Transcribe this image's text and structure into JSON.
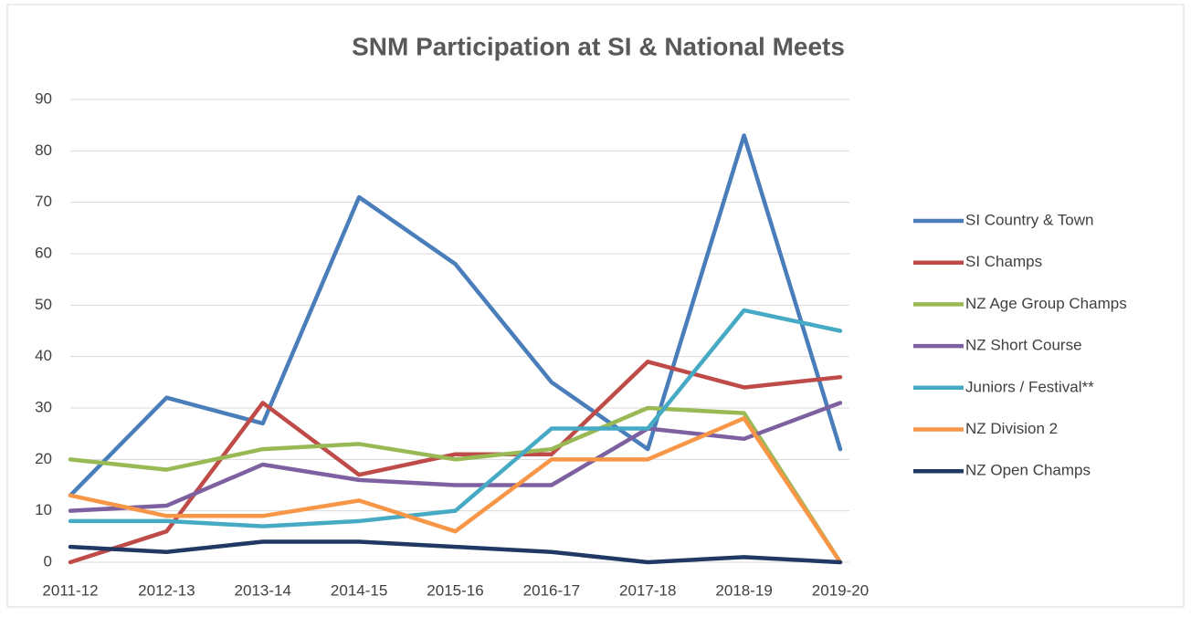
{
  "chart_data": {
    "type": "line",
    "title": "SNM Participation at SI & National Meets",
    "categories": [
      "2011-12",
      "2012-13",
      "2013-14",
      "2014-15",
      "2015-16",
      "2016-17",
      "2017-18",
      "2018-19",
      "2019-20"
    ],
    "series": [
      {
        "name": "SI Country & Town",
        "color": "#4a7ebb",
        "values": [
          13,
          32,
          27,
          71,
          58,
          35,
          22,
          83,
          22
        ]
      },
      {
        "name": "SI Champs",
        "color": "#be4b48",
        "values": [
          0,
          6,
          31,
          17,
          21,
          21,
          39,
          34,
          36
        ]
      },
      {
        "name": "NZ Age Group Champs",
        "color": "#98b954",
        "values": [
          20,
          18,
          22,
          23,
          20,
          22,
          30,
          29,
          0
        ]
      },
      {
        "name": "NZ Short Course",
        "color": "#7d60a0",
        "values": [
          10,
          11,
          19,
          16,
          15,
          15,
          26,
          24,
          31
        ]
      },
      {
        "name": "Juniors / Festival**",
        "color": "#46aac5",
        "values": [
          8,
          8,
          7,
          8,
          10,
          26,
          26,
          49,
          45
        ]
      },
      {
        "name": "NZ Division 2",
        "color": "#f79646",
        "values": [
          13,
          9,
          9,
          12,
          6,
          20,
          20,
          28,
          0
        ]
      },
      {
        "name": "NZ Open Champs",
        "color": "#203864",
        "values": [
          3,
          2,
          4,
          4,
          3,
          2,
          0,
          1,
          0
        ]
      }
    ],
    "ylim": [
      0,
      90
    ],
    "yticks": [
      0,
      10,
      20,
      30,
      40,
      50,
      60,
      70,
      80,
      90
    ],
    "grid": true,
    "legend": "right"
  }
}
